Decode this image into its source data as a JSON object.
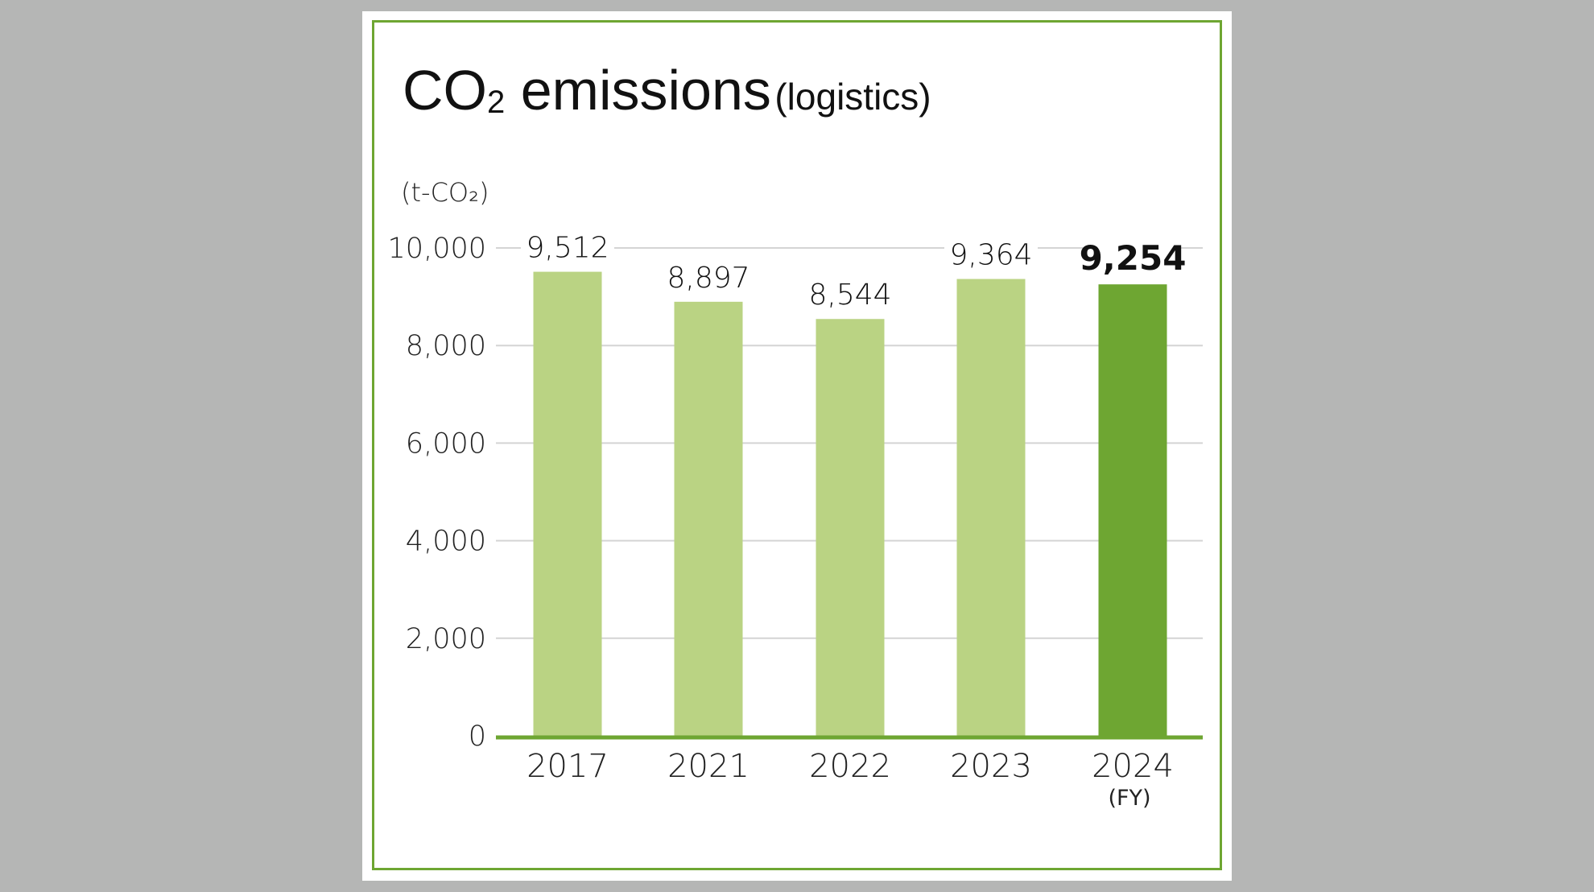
{
  "chart_data": {
    "type": "bar",
    "title": "CO2 emissions",
    "title_parts": {
      "main": "CO",
      "subscript": "2",
      "rest": " emissions",
      "qualifier": "(logistics)"
    },
    "ylabel": "(t-CO₂)",
    "xlabel_suffix": "(FY)",
    "categories": [
      "2017",
      "2021",
      "2022",
      "2023",
      "2024"
    ],
    "values": [
      9512,
      8897,
      8544,
      9364,
      9254
    ],
    "value_labels": [
      "9,512",
      "8,897",
      "8,544",
      "9,364",
      "9,254"
    ],
    "highlighted_category": "2024",
    "ylim": [
      0,
      10000
    ],
    "yticks": [
      0,
      2000,
      4000,
      6000,
      8000,
      10000
    ],
    "ytick_labels": [
      "0",
      "2,000",
      "4,000",
      "6,000",
      "8,000",
      "10,000"
    ],
    "grid": true,
    "colors": {
      "bar": "#bad383",
      "highlight": "#6ea632",
      "axis": "#6ea632",
      "grid": "#d4d4d4",
      "frame": "#6ea632",
      "background": "#b5b6b5"
    }
  }
}
